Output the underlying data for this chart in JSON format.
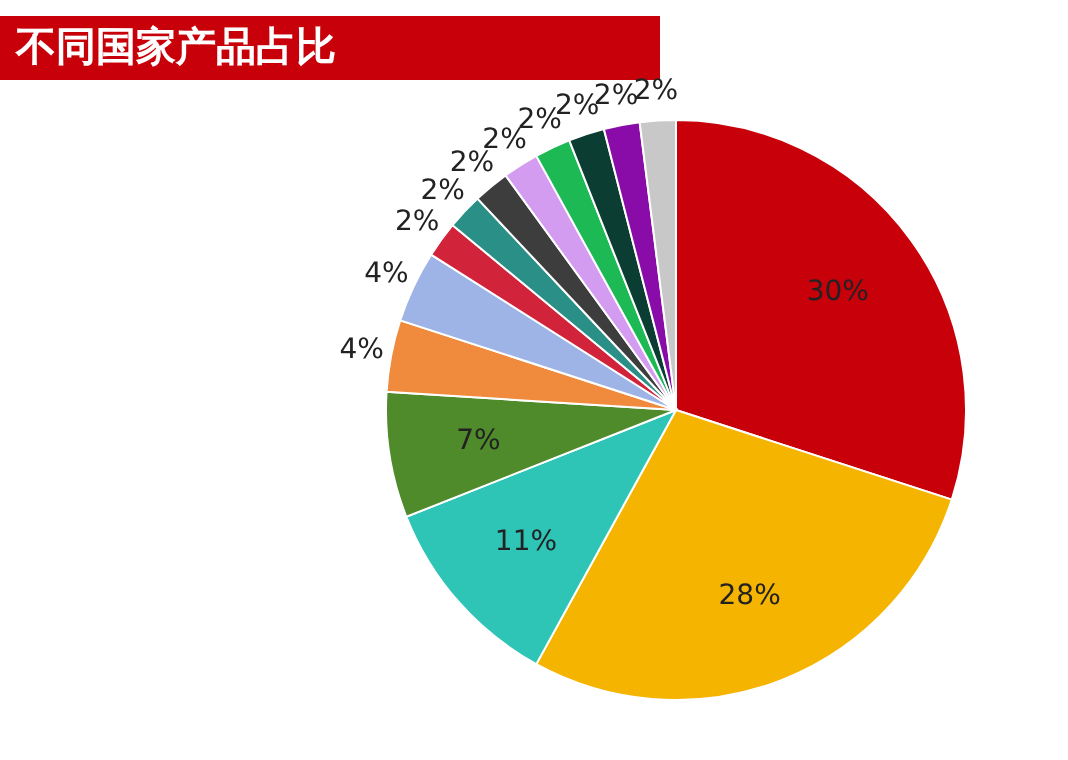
{
  "chart_data": {
    "type": "pie",
    "title": "不同国家产品占比",
    "categories": [
      null,
      null,
      null,
      null,
      null,
      null,
      null,
      null,
      null,
      null,
      null,
      null,
      null,
      null
    ],
    "values": [
      30,
      28,
      11,
      7,
      4,
      4,
      2,
      2,
      2,
      2,
      2,
      2,
      2,
      2
    ],
    "colors": [
      "#c8000a",
      "#f5b400",
      "#2ec4b6",
      "#4f8a2b",
      "#f08a3c",
      "#9fb4e6",
      "#d1243a",
      "#2a8f86",
      "#3d3d3d",
      "#d49cf0",
      "#1db954",
      "#0c3d33",
      "#8a0ca8",
      "#c8c8c8"
    ],
    "value_labels": [
      "30%",
      "28%",
      "11%",
      "7%",
      "4%",
      "4%",
      "2%",
      "2%",
      "2%",
      "2%",
      "2%",
      "2%",
      "2%",
      "2%"
    ]
  }
}
